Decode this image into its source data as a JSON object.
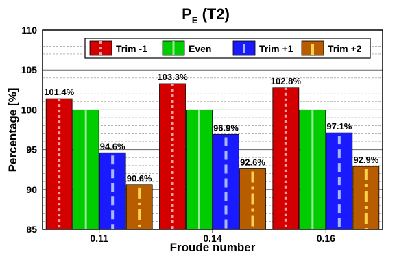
{
  "chart_data": {
    "type": "bar",
    "title_main": "P",
    "title_sub": "E",
    "title_rest": " (T2)",
    "xlabel": "Froude number",
    "ylabel": "Percentage [%]",
    "categories": [
      "0.11",
      "0.14",
      "0.16"
    ],
    "ylim": [
      85,
      110
    ],
    "yticks": [
      85,
      90,
      95,
      100,
      105,
      110
    ],
    "grid": true,
    "legend_position": "top-right",
    "series": [
      {
        "name": "Trim -1",
        "values": [
          101.4,
          103.3,
          102.8
        ],
        "labels": [
          "101.4%",
          "103.3%",
          "102.8%"
        ],
        "color": "#d40000",
        "stripe": "#f2a0a0",
        "pattern": "dots"
      },
      {
        "name": "Even",
        "values": [
          100.0,
          100.0,
          100.0
        ],
        "labels": [
          "",
          "",
          ""
        ],
        "color": "#00cc00",
        "stripe": "#9ae69a",
        "pattern": "solid"
      },
      {
        "name": "Trim +1",
        "values": [
          94.6,
          96.9,
          97.1
        ],
        "labels": [
          "94.6%",
          "96.9%",
          "97.1%"
        ],
        "color": "#1a1aff",
        "stripe": "#a8b8ff",
        "pattern": "dashes"
      },
      {
        "name": "Trim +2",
        "values": [
          90.6,
          92.6,
          92.9
        ],
        "labels": [
          "90.6%",
          "92.6%",
          "92.9%"
        ],
        "color": "#b85c00",
        "stripe": "#ffd24d",
        "pattern": "dashdot"
      }
    ]
  }
}
